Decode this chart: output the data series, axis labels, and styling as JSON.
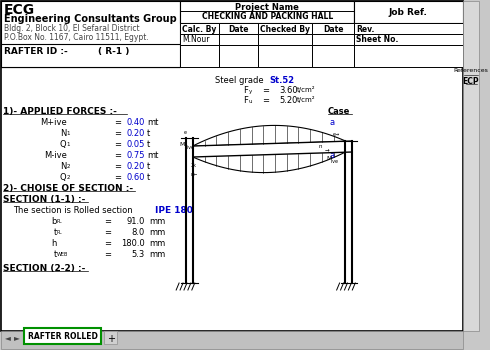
{
  "bg_color": "#c8c8c8",
  "sheet_bg": "#ffffff",
  "ecg_title": "ECG",
  "ecg_subtitle": "Engineering Consultants Group",
  "address1": "Bldg. 2, Block 10, El Sefaral District",
  "address2": "P.O.Box No. 1167, Cairo 11511, Egypt.",
  "rafter_id": "RAFTER ID :-",
  "rafter_val": "( R-1 )",
  "project_name": "Project Name",
  "project_val": "CHECKING AND PACKING HALL",
  "job_ref": "Job Ref.",
  "calc_by": "Calc. By",
  "date1": "Date",
  "checked_by": "Checked By",
  "date2": "Date",
  "rev": "Rev.",
  "sheet_no": "Sheet No.",
  "calc_by_val": "M.Nour",
  "references": "References",
  "ref_val": "ECP",
  "steel_grade_label": "Steel grade",
  "steel_grade_val": "St.52",
  "fy_val": "3.60",
  "fy_unit": "t/cm²",
  "fu_val": "5.20",
  "fu_unit": "t/cm²",
  "forces_title": "1)- APPLIED FORCES :-",
  "case_label": "Case",
  "forces": [
    {
      "label": "M+ive",
      "eq": "=",
      "val": "0.40",
      "unit": "mt",
      "case": "a"
    },
    {
      "label": "N1",
      "eq": "=",
      "val": "0.20",
      "unit": "t",
      "case": ""
    },
    {
      "label": "Q1",
      "eq": "=",
      "val": "0.05",
      "unit": "t",
      "case": ""
    },
    {
      "label": "M-ive",
      "eq": "=",
      "val": "0.75",
      "unit": "mt",
      "case": "a"
    },
    {
      "label": "N2",
      "eq": "=",
      "val": "0.20",
      "unit": "t",
      "case": ""
    },
    {
      "label": "Q2",
      "eq": "=",
      "val": "0.60",
      "unit": "t",
      "case": ""
    }
  ],
  "section_title": "2)- CHOISE OF SECTION :-",
  "section1_title": "SECTION (1-1) :-",
  "section1_desc": "The section is Rolled section",
  "section1_type": "IPE 180",
  "section1_props": [
    {
      "label": "bPL",
      "eq": "=",
      "val": "91.0",
      "unit": "mm"
    },
    {
      "label": "tPL",
      "eq": "=",
      "val": "8.0",
      "unit": "mm"
    },
    {
      "label": "h",
      "eq": "=",
      "val": "180.0",
      "unit": "mm"
    },
    {
      "label": "tWEB",
      "eq": "=",
      "val": "5.3",
      "unit": "mm"
    }
  ],
  "section2_title": "SECTION (2-2) :-",
  "tab_label": "RAFTER ROLLED",
  "val_color": "#0000cc",
  "blue_color": "#0000cc"
}
